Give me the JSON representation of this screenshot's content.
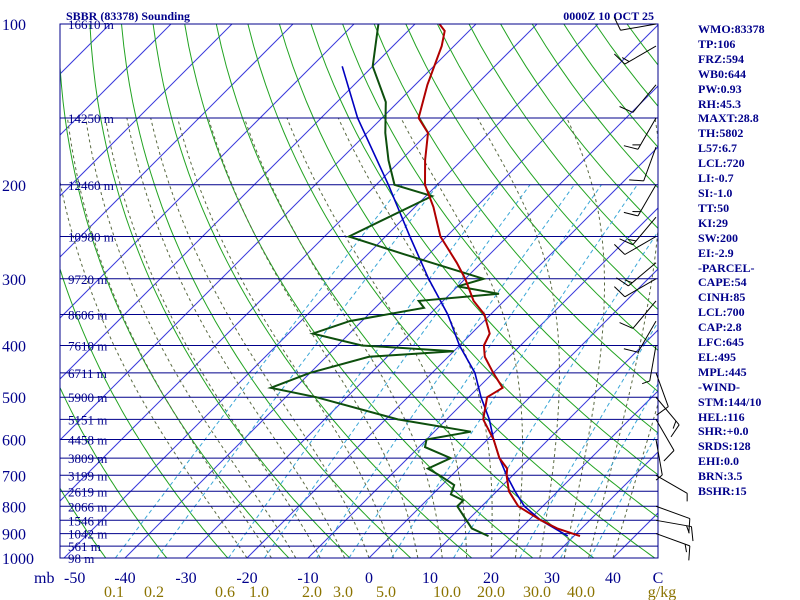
{
  "chart_data": {
    "type": "skew-t log-p sounding",
    "title": "SBBR (83378) Sounding",
    "datetime": "0000Z 10 OCT 25",
    "pressure_levels_hpa": [
      100,
      200,
      300,
      400,
      500,
      600,
      700,
      800,
      900,
      1000
    ],
    "height_markers": [
      {
        "p": 100,
        "label": "16610 m"
      },
      {
        "p": 150,
        "label": "14250 m"
      },
      {
        "p": 200,
        "label": "12460 m"
      },
      {
        "p": 250,
        "label": "10980 m"
      },
      {
        "p": 300,
        "label": "9720 m"
      },
      {
        "p": 350,
        "label": "8606 m"
      },
      {
        "p": 400,
        "label": "7610 m"
      },
      {
        "p": 450,
        "label": "6711 m"
      },
      {
        "p": 500,
        "label": "5900 m"
      },
      {
        "p": 550,
        "label": "5151 m"
      },
      {
        "p": 600,
        "label": "4458 m"
      },
      {
        "p": 650,
        "label": "3809 m"
      },
      {
        "p": 700,
        "label": "3199 m"
      },
      {
        "p": 750,
        "label": "2619 m"
      },
      {
        "p": 800,
        "label": "2066 m"
      },
      {
        "p": 850,
        "label": "1546 m"
      },
      {
        "p": 900,
        "label": "1042 m"
      },
      {
        "p": 950,
        "label": "561 m"
      },
      {
        "p": 1000,
        "label": "98 m"
      }
    ],
    "pressure_axis_unit": "mb",
    "temperature_ticks": [
      "-50",
      "-40",
      "-30",
      "-20",
      "-10",
      "0",
      "10",
      "20",
      "30",
      "40",
      "C"
    ],
    "mixing_ratio_ticks": [
      "0.1",
      "0.2",
      "0.6",
      "1.0",
      "2.0",
      "3.0",
      "5.0",
      "10.0",
      "20.0",
      "30.0",
      "40.0",
      "g/kg"
    ],
    "mixing_ratio_values": [
      0.1,
      0.2,
      0.6,
      1.0,
      2.0,
      3.0,
      5.0,
      10.0,
      20.0,
      30.0,
      40.0
    ],
    "temperature_profile": [
      {
        "p": 910,
        "t": 31
      },
      {
        "p": 880,
        "t": 26
      },
      {
        "p": 850,
        "t": 22
      },
      {
        "p": 800,
        "t": 16
      },
      {
        "p": 750,
        "t": 12
      },
      {
        "p": 700,
        "t": 9
      },
      {
        "p": 680,
        "t": 8
      },
      {
        "p": 650,
        "t": 5
      },
      {
        "p": 600,
        "t": 1
      },
      {
        "p": 550,
        "t": -4
      },
      {
        "p": 500,
        "t": -7
      },
      {
        "p": 480,
        "t": -6
      },
      {
        "p": 450,
        "t": -10
      },
      {
        "p": 420,
        "t": -14
      },
      {
        "p": 400,
        "t": -16
      },
      {
        "p": 380,
        "t": -17
      },
      {
        "p": 350,
        "t": -21
      },
      {
        "p": 330,
        "t": -25
      },
      {
        "p": 300,
        "t": -30
      },
      {
        "p": 280,
        "t": -34
      },
      {
        "p": 250,
        "t": -41
      },
      {
        "p": 220,
        "t": -47
      },
      {
        "p": 200,
        "t": -52
      },
      {
        "p": 180,
        "t": -56
      },
      {
        "p": 160,
        "t": -60
      },
      {
        "p": 150,
        "t": -64
      },
      {
        "p": 130,
        "t": -68
      },
      {
        "p": 110,
        "t": -72
      },
      {
        "p": 103,
        "t": -74
      },
      {
        "p": 100,
        "t": -76
      }
    ],
    "dewpoint_profile": [
      {
        "p": 910,
        "t": 16
      },
      {
        "p": 880,
        "t": 12
      },
      {
        "p": 800,
        "t": 6
      },
      {
        "p": 780,
        "t": 6
      },
      {
        "p": 760,
        "t": 3
      },
      {
        "p": 730,
        "t": 2
      },
      {
        "p": 700,
        "t": -2
      },
      {
        "p": 680,
        "t": -5
      },
      {
        "p": 650,
        "t": -3
      },
      {
        "p": 620,
        "t": -9
      },
      {
        "p": 600,
        "t": -10
      },
      {
        "p": 580,
        "t": -4
      },
      {
        "p": 550,
        "t": -18
      },
      {
        "p": 500,
        "t": -35
      },
      {
        "p": 480,
        "t": -44
      },
      {
        "p": 450,
        "t": -40
      },
      {
        "p": 420,
        "t": -33
      },
      {
        "p": 410,
        "t": -20
      },
      {
        "p": 400,
        "t": -36
      },
      {
        "p": 380,
        "t": -46
      },
      {
        "p": 360,
        "t": -42
      },
      {
        "p": 340,
        "t": -32
      },
      {
        "p": 330,
        "t": -34
      },
      {
        "p": 320,
        "t": -22
      },
      {
        "p": 310,
        "t": -30
      },
      {
        "p": 300,
        "t": -27
      },
      {
        "p": 270,
        "t": -44
      },
      {
        "p": 250,
        "t": -56
      },
      {
        "p": 210,
        "t": -49
      },
      {
        "p": 200,
        "t": -57
      },
      {
        "p": 180,
        "t": -62
      },
      {
        "p": 160,
        "t": -67
      },
      {
        "p": 140,
        "t": -72
      },
      {
        "p": 120,
        "t": -80
      },
      {
        "p": 100,
        "t": -86
      }
    ],
    "parcel_profile": [
      {
        "p": 910,
        "t": 29
      },
      {
        "p": 850,
        "t": 22
      },
      {
        "p": 800,
        "t": 17
      },
      {
        "p": 750,
        "t": 13
      },
      {
        "p": 700,
        "t": 9
      },
      {
        "p": 650,
        "t": 5
      },
      {
        "p": 600,
        "t": 1
      },
      {
        "p": 550,
        "t": -3
      },
      {
        "p": 500,
        "t": -8
      },
      {
        "p": 450,
        "t": -13
      },
      {
        "p": 400,
        "t": -20
      },
      {
        "p": 350,
        "t": -27
      },
      {
        "p": 300,
        "t": -36
      },
      {
        "p": 250,
        "t": -46
      },
      {
        "p": 200,
        "t": -58
      },
      {
        "p": 150,
        "t": -74
      },
      {
        "p": 120,
        "t": -85
      }
    ],
    "wind_barbs": [
      {
        "p": 100,
        "dir": 80,
        "spd": 10
      },
      {
        "p": 110,
        "dir": 60,
        "spd": 15
      },
      {
        "p": 130,
        "dir": 40,
        "spd": 10
      },
      {
        "p": 150,
        "dir": 30,
        "spd": 15
      },
      {
        "p": 170,
        "dir": 20,
        "spd": 10
      },
      {
        "p": 200,
        "dir": 30,
        "spd": 15
      },
      {
        "p": 230,
        "dir": 40,
        "spd": 15
      },
      {
        "p": 250,
        "dir": 60,
        "spd": 10
      },
      {
        "p": 280,
        "dir": 50,
        "spd": 15
      },
      {
        "p": 300,
        "dir": 60,
        "spd": 10
      },
      {
        "p": 330,
        "dir": 40,
        "spd": 10
      },
      {
        "p": 360,
        "dir": 30,
        "spd": 10
      },
      {
        "p": 400,
        "dir": 10,
        "spd": 5
      },
      {
        "p": 450,
        "dir": 340,
        "spd": 10
      },
      {
        "p": 500,
        "dir": 320,
        "spd": 15
      },
      {
        "p": 550,
        "dir": 330,
        "spd": 10
      },
      {
        "p": 600,
        "dir": 350,
        "spd": 5
      },
      {
        "p": 700,
        "dir": 300,
        "spd": 5
      },
      {
        "p": 800,
        "dir": 290,
        "spd": 10
      },
      {
        "p": 850,
        "dir": 280,
        "spd": 15
      },
      {
        "p": 900,
        "dir": 290,
        "spd": 15
      }
    ],
    "colors": {
      "isobar": "#00008b",
      "isotherm": "#3a3adb",
      "dry_adiabat": "#22a322",
      "moist_adiabat": "#5a6a42",
      "mixing_ratio": "#3aa6d6",
      "temperature": "#b00000",
      "dewpoint": "#0d4f0d",
      "parcel": "#0000c0",
      "label": "#00008b",
      "mixing_label": "#8b7300",
      "wind": "#000000"
    }
  },
  "indices": [
    "WMO:83378",
    "TP:106",
    "FRZ:594",
    "WB0:644",
    "PW:0.93",
    "RH:45.3",
    "MAXT:28.8",
    "TH:5802",
    "L57:6.7",
    "LCL:720",
    "LI:-0.7",
    "SI:-1.0",
    "TT:50",
    "KI:29",
    "SW:200",
    "EI:-2.9",
    "-PARCEL-",
    "CAPE:54",
    "CINH:85",
    "LCL:700",
    "CAP:2.8",
    "LFC:645",
    "EL:495",
    "MPL:445",
    "-WIND-",
    "STM:144/10",
    "HEL:116",
    "SHR:+0.0",
    "SRDS:128",
    "EHI:0.0",
    "BRN:3.5",
    "BSHR:15"
  ]
}
